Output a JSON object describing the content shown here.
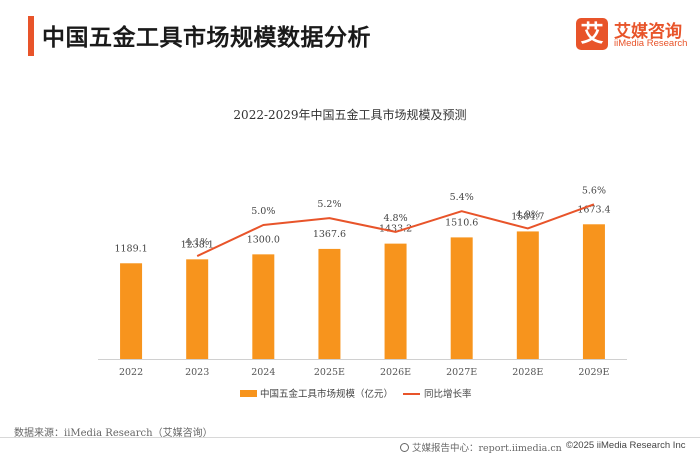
{
  "header": {
    "title": "中国五金工具市场规模数据分析"
  },
  "logo": {
    "mark": "艾",
    "name_cn": "艾媒咨询",
    "name_en": "iiMedia Research"
  },
  "chart_data": {
    "type": "bar",
    "title": "2022-2029年中国五金工具市场规模及预测",
    "categories": [
      "2022",
      "2023",
      "2024",
      "2025E",
      "2026E",
      "2027E",
      "2028E",
      "2029E"
    ],
    "series": [
      {
        "name": "中国五金工具市场规模（亿元）",
        "type": "bar",
        "values": [
          1189.1,
          1238.1,
          1300.0,
          1367.6,
          1433.2,
          1510.6,
          1584.7,
          1673.4
        ],
        "labels": [
          "1189.1",
          "1238.1",
          "1300.0",
          "1367.6",
          "1433.2",
          "1510.6",
          "1584.7",
          "1673.4"
        ],
        "color": "#f7941d"
      },
      {
        "name": "同比增长率",
        "type": "line",
        "values": [
          null,
          4.1,
          5.0,
          5.2,
          4.8,
          5.4,
          4.9,
          5.6
        ],
        "labels": [
          "",
          "4.1%",
          "5.0%",
          "5.2%",
          "4.8%",
          "5.4%",
          "4.9%",
          "5.6%"
        ],
        "color": "#e8542a"
      }
    ],
    "legend_position": "bottom",
    "grid": false
  },
  "footer": {
    "source": "数据来源：iiMedia Research（艾媒咨询）",
    "center": "艾媒报告中心：report.iimedia.cn",
    "copyright": "©2025  iiMedia Research  Inc"
  }
}
